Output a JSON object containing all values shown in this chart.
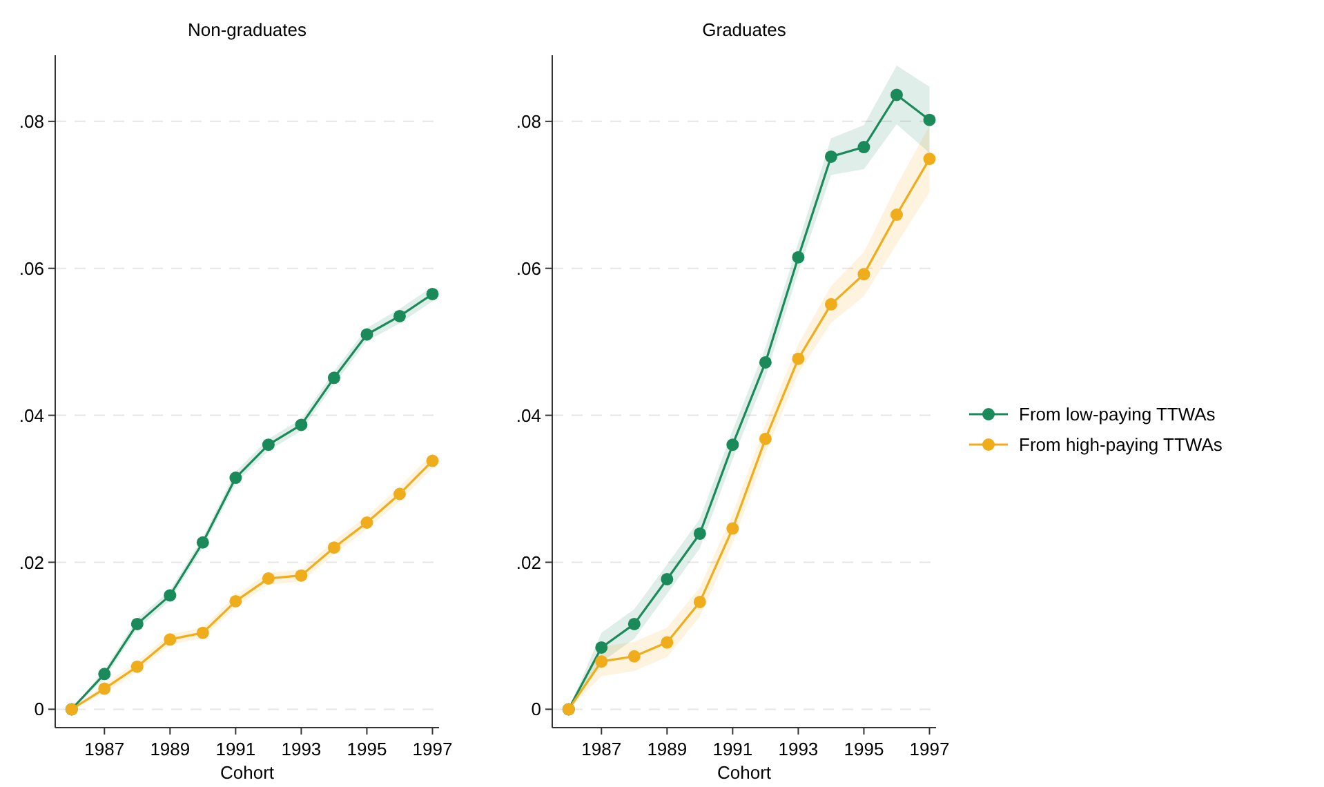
{
  "chart_data": [
    {
      "type": "line",
      "title": "Non-graduates",
      "xlabel": "Cohort",
      "x": [
        1986,
        1987,
        1988,
        1989,
        1990,
        1991,
        1992,
        1993,
        1994,
        1995,
        1996,
        1997
      ],
      "xlim": [
        1985.5,
        1997.2
      ],
      "xticks": [
        1987,
        1989,
        1991,
        1993,
        1995,
        1997
      ],
      "ylim": [
        -0.0025,
        0.089
      ],
      "yticks": [
        {
          "value": 0,
          "label": "0"
        },
        {
          "value": 0.02,
          "label": ".02"
        },
        {
          "value": 0.04,
          "label": ".04"
        },
        {
          "value": 0.06,
          "label": ".06"
        },
        {
          "value": 0.08,
          "label": ".08"
        }
      ],
      "grid": "y",
      "legend": false,
      "marker": "circle",
      "line_style": "solid",
      "series": [
        {
          "color": "#1b8a5a",
          "values": [
            0,
            0.0048,
            0.0116,
            0.0155,
            0.0227,
            0.0315,
            0.036,
            0.0387,
            0.0451,
            0.051,
            0.0535,
            0.0565
          ],
          "lower": [
            0,
            0.0042,
            0.0109,
            0.0148,
            0.022,
            0.0307,
            0.0352,
            0.0379,
            0.0442,
            0.0501,
            0.0525,
            0.0555
          ],
          "upper": [
            0,
            0.0054,
            0.0123,
            0.0162,
            0.0234,
            0.0323,
            0.0368,
            0.0395,
            0.046,
            0.0519,
            0.0545,
            0.0575
          ]
        },
        {
          "color": "#f0ad1b",
          "values": [
            0,
            0.0028,
            0.0058,
            0.0095,
            0.0104,
            0.0147,
            0.0178,
            0.0182,
            0.022,
            0.0254,
            0.0293,
            0.0338
          ],
          "lower": [
            0,
            0.0022,
            0.0051,
            0.0088,
            0.0097,
            0.0139,
            0.017,
            0.0174,
            0.0211,
            0.0245,
            0.0283,
            0.0328
          ],
          "upper": [
            0,
            0.0034,
            0.0065,
            0.0102,
            0.0111,
            0.0155,
            0.0186,
            0.019,
            0.0229,
            0.0263,
            0.0303,
            0.0348
          ]
        }
      ]
    },
    {
      "type": "line",
      "title": "Graduates",
      "xlabel": "Cohort",
      "x": [
        1986,
        1987,
        1988,
        1989,
        1990,
        1991,
        1992,
        1993,
        1994,
        1995,
        1996,
        1997
      ],
      "xlim": [
        1985.5,
        1997.2
      ],
      "xticks": [
        1987,
        1989,
        1991,
        1993,
        1995,
        1997
      ],
      "ylim": [
        -0.0025,
        0.089
      ],
      "yticks": [
        {
          "value": 0,
          "label": "0"
        },
        {
          "value": 0.02,
          "label": ".02"
        },
        {
          "value": 0.04,
          "label": ".04"
        },
        {
          "value": 0.06,
          "label": ".06"
        },
        {
          "value": 0.08,
          "label": ".08"
        }
      ],
      "grid": "y",
      "legend": "right",
      "marker": "circle",
      "line_style": "solid",
      "series": [
        {
          "name": "From low-paying TTWAs",
          "color": "#1b8a5a",
          "values": [
            0,
            0.0084,
            0.0116,
            0.0177,
            0.0239,
            0.036,
            0.0472,
            0.0615,
            0.0752,
            0.0765,
            0.0836,
            0.0802
          ],
          "lower": [
            0,
            0.0064,
            0.0096,
            0.0157,
            0.0219,
            0.034,
            0.0452,
            0.0595,
            0.0727,
            0.0735,
            0.0796,
            0.0757
          ],
          "upper": [
            0,
            0.0104,
            0.0136,
            0.0197,
            0.0259,
            0.038,
            0.0492,
            0.0635,
            0.0777,
            0.0795,
            0.0876,
            0.0847
          ]
        },
        {
          "name": "From high-paying TTWAs",
          "color": "#f0ad1b",
          "values": [
            0,
            0.0065,
            0.0072,
            0.0091,
            0.0146,
            0.0246,
            0.0368,
            0.0477,
            0.0551,
            0.0592,
            0.0673,
            0.0749
          ],
          "lower": [
            0,
            0.0045,
            0.0052,
            0.0071,
            0.0126,
            0.0226,
            0.0348,
            0.0457,
            0.0526,
            0.0562,
            0.0633,
            0.0704
          ],
          "upper": [
            0,
            0.0085,
            0.0092,
            0.0111,
            0.0166,
            0.0266,
            0.0388,
            0.0497,
            0.0576,
            0.0622,
            0.0713,
            0.0794
          ]
        }
      ]
    }
  ]
}
